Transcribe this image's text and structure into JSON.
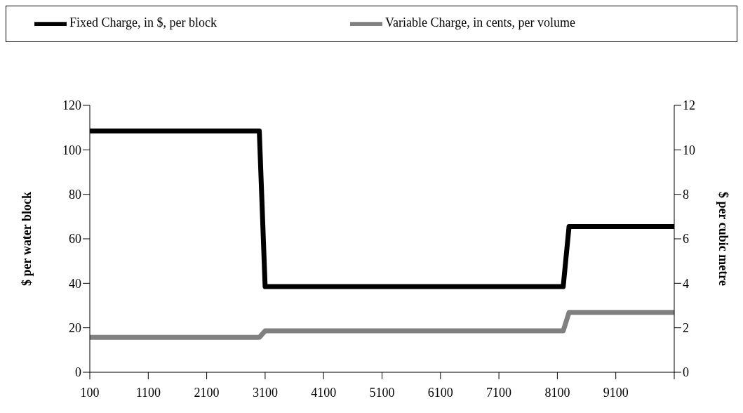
{
  "chart_data": {
    "type": "line",
    "ylabel": "$ per water block",
    "y2label": "$ per cubic metre",
    "xlim": [
      100,
      10100
    ],
    "xticks": [
      100,
      1100,
      2100,
      3100,
      4100,
      5100,
      6100,
      7100,
      8100,
      9100,
      {
        "value": 10100,
        "label": null
      }
    ],
    "ylim": [
      0,
      120
    ],
    "yticks": [
      0,
      20,
      40,
      60,
      80,
      100,
      120
    ],
    "y2lim": [
      0,
      12
    ],
    "y2ticks": [
      0,
      2,
      4,
      6,
      8,
      10,
      12
    ],
    "series": [
      {
        "name": "Fixed Charge, in $, per block",
        "color": "#000000",
        "x": [
          100,
          3000,
          3100,
          8200,
          8300,
          10100
        ],
        "values": [
          108.5,
          108.5,
          38.5,
          38.5,
          65.5,
          65.5
        ]
      },
      {
        "name": "Variable Charge, in cents, per volume",
        "color": "#808080",
        "axis": "y2",
        "x": [
          100,
          3000,
          3100,
          8200,
          8300,
          10100
        ],
        "values": [
          1.57,
          1.57,
          1.86,
          1.86,
          2.69,
          2.69
        ]
      }
    ],
    "legend": "top",
    "marker": "none",
    "line_style": "solid"
  }
}
